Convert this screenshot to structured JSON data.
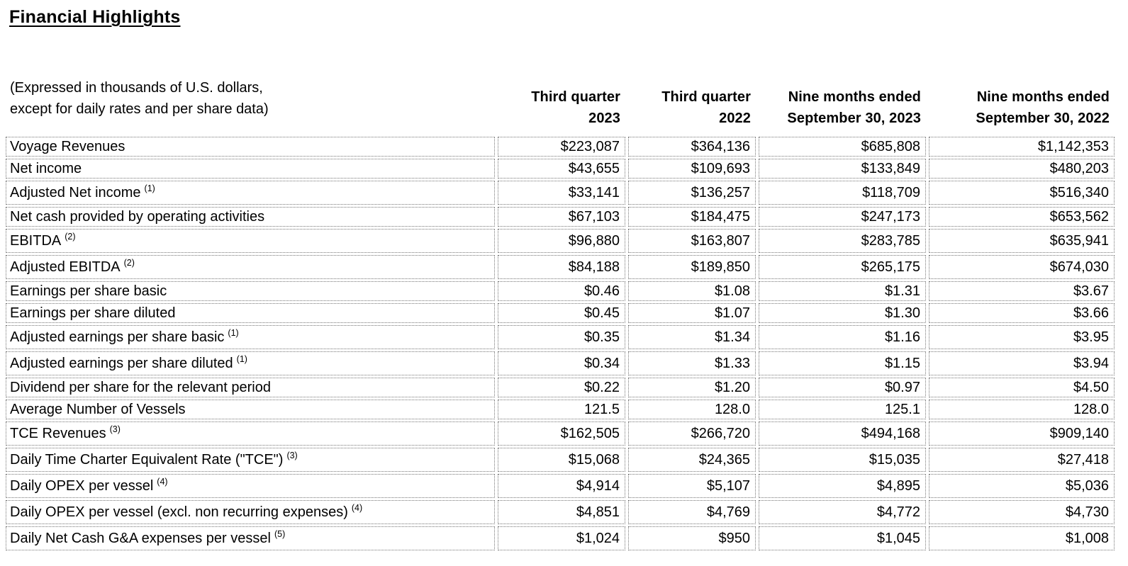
{
  "page": {
    "title": "Financial Highlights",
    "subtitle_line1": "(Expressed in thousands of U.S. dollars,",
    "subtitle_line2": "except for daily rates and per share data)"
  },
  "colors": {
    "text": "#000000",
    "border": "#767676",
    "background": "#ffffff"
  },
  "table": {
    "column_headers": [
      {
        "line1": "Third quarter",
        "line2": "2023"
      },
      {
        "line1": "Third quarter",
        "line2": "2022"
      },
      {
        "line1": "Nine months ended",
        "line2": "September 30, 2023"
      },
      {
        "line1": "Nine months ended",
        "line2": "September 30, 2022"
      }
    ],
    "rows": [
      {
        "label": "Voyage Revenues",
        "note": "",
        "values": [
          "$223,087",
          "$364,136",
          "$685,808",
          "$1,142,353"
        ]
      },
      {
        "label": "Net income",
        "note": "",
        "values": [
          "$43,655",
          "$109,693",
          "$133,849",
          "$480,203"
        ]
      },
      {
        "label": "Adjusted Net income",
        "note": "(1)",
        "values": [
          "$33,141",
          "$136,257",
          "$118,709",
          "$516,340"
        ]
      },
      {
        "label": "Net cash provided by operating activities",
        "note": "",
        "values": [
          "$67,103",
          "$184,475",
          "$247,173",
          "$653,562"
        ]
      },
      {
        "label": "EBITDA",
        "note": "(2)",
        "values": [
          "$96,880",
          "$163,807",
          "$283,785",
          "$635,941"
        ]
      },
      {
        "label": "Adjusted EBITDA",
        "note": "(2)",
        "values": [
          "$84,188",
          "$189,850",
          "$265,175",
          "$674,030"
        ]
      },
      {
        "label": "Earnings per share basic",
        "note": "",
        "values": [
          "$0.46",
          "$1.08",
          "$1.31",
          "$3.67"
        ]
      },
      {
        "label": "Earnings per share diluted",
        "note": "",
        "values": [
          "$0.45",
          "$1.07",
          "$1.30",
          "$3.66"
        ]
      },
      {
        "label": "Adjusted earnings per share basic",
        "note": "(1)",
        "values": [
          "$0.35",
          "$1.34",
          "$1.16",
          "$3.95"
        ]
      },
      {
        "label": "Adjusted earnings per share diluted",
        "note": "(1)",
        "values": [
          "$0.34",
          "$1.33",
          "$1.15",
          "$3.94"
        ]
      },
      {
        "label": "Dividend per share for the relevant period",
        "note": "",
        "values": [
          "$0.22",
          "$1.20",
          "$0.97",
          "$4.50"
        ]
      },
      {
        "label": "Average Number of Vessels",
        "note": "",
        "values": [
          "121.5",
          "128.0",
          "125.1",
          "128.0"
        ]
      },
      {
        "label": "TCE Revenues",
        "note": "(3)",
        "values": [
          "$162,505",
          "$266,720",
          "$494,168",
          "$909,140"
        ]
      },
      {
        "label": "Daily Time Charter Equivalent Rate (\"TCE\")",
        "note": "(3)",
        "values": [
          "$15,068",
          "$24,365",
          "$15,035",
          "$27,418"
        ]
      },
      {
        "label": "Daily OPEX per vessel",
        "note": "(4)",
        "values": [
          "$4,914",
          "$5,107",
          "$4,895",
          "$5,036"
        ]
      },
      {
        "label": "Daily OPEX per vessel (excl. non recurring expenses)",
        "note": "(4)",
        "values": [
          "$4,851",
          "$4,769",
          "$4,772",
          "$4,730"
        ]
      },
      {
        "label": "Daily Net Cash G&A expenses per vessel",
        "note": "(5)",
        "values": [
          "$1,024",
          "$950",
          "$1,045",
          "$1,008"
        ]
      }
    ]
  }
}
